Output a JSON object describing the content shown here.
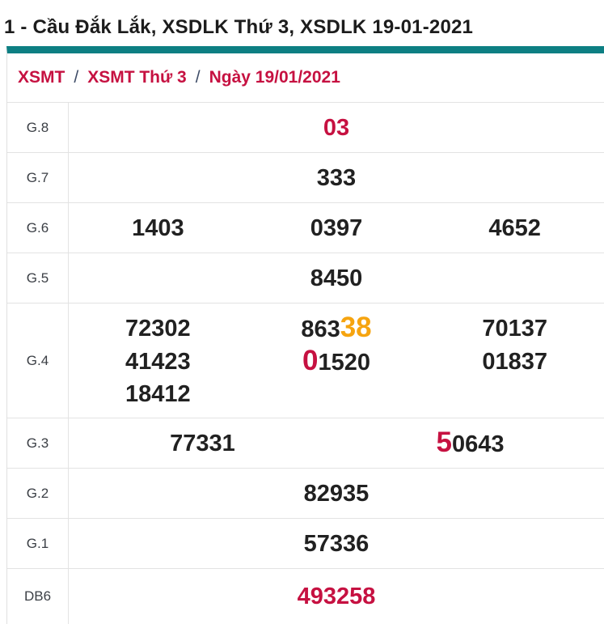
{
  "title": "1 - Cầu Đắk Lắk, XSDLK Thứ 3, XSDLK 19-01-2021",
  "breadcrumb": {
    "items": [
      "XSMT",
      "XSMT Thứ 3",
      "Ngày 19/01/2021"
    ],
    "separator": "/"
  },
  "colors": {
    "accent_teal": "#0D7F83",
    "highlight_red": "#C61141",
    "highlight_orange": "#F6A40F",
    "text_black": "#212121"
  },
  "results_table": {
    "rows": [
      {
        "label": "G.8",
        "columns": 1,
        "values": [
          [
            {
              "text": "03",
              "style": "red"
            }
          ]
        ]
      },
      {
        "label": "G.7",
        "columns": 1,
        "values": [
          [
            {
              "text": "333"
            }
          ]
        ]
      },
      {
        "label": "G.6",
        "columns": 3,
        "values": [
          [
            {
              "text": "1403"
            }
          ],
          [
            {
              "text": "0397"
            }
          ],
          [
            {
              "text": "4652"
            }
          ]
        ]
      },
      {
        "label": "G.5",
        "columns": 1,
        "values": [
          [
            {
              "text": "8450"
            }
          ]
        ]
      },
      {
        "label": "G.4",
        "columns": 3,
        "tall": true,
        "values": [
          [
            {
              "text": "72302"
            }
          ],
          [
            {
              "text": "863"
            },
            {
              "text": "38",
              "style": "orange-big"
            }
          ],
          [
            {
              "text": "70137"
            }
          ],
          [
            {
              "text": "41423"
            }
          ],
          [
            {
              "text": "0",
              "style": "red-big"
            },
            {
              "text": "1520"
            }
          ],
          [
            {
              "text": "01837"
            }
          ],
          [
            {
              "text": "18412"
            }
          ]
        ]
      },
      {
        "label": "G.3",
        "columns": 2,
        "values": [
          [
            {
              "text": "77331"
            }
          ],
          [
            {
              "text": "5",
              "style": "red-big"
            },
            {
              "text": "0643"
            }
          ]
        ]
      },
      {
        "label": "G.2",
        "columns": 1,
        "values": [
          [
            {
              "text": "82935"
            }
          ]
        ]
      },
      {
        "label": "G.1",
        "columns": 1,
        "values": [
          [
            {
              "text": "57336"
            }
          ]
        ]
      },
      {
        "label": "DB6",
        "columns": 1,
        "last": true,
        "values": [
          [
            {
              "text": "493258",
              "style": "red"
            }
          ]
        ]
      }
    ]
  }
}
